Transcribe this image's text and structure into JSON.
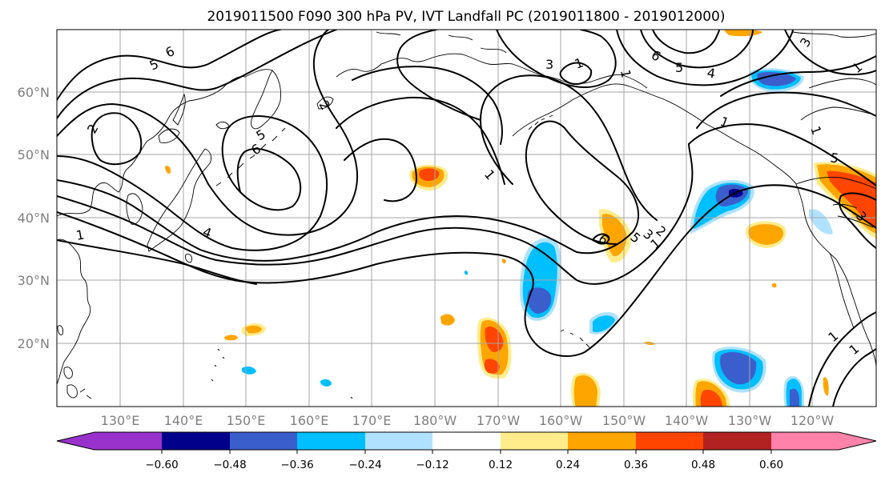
{
  "title": "2019011500 F090 300 hPa PV, IVT Landfall PC (2019011800 - 2019012000)",
  "lat_labels": [
    "60°N",
    "50°N",
    "40°N",
    "30°N",
    "20°N"
  ],
  "lon_labels": [
    "130°E",
    "140°E",
    "150°E",
    "160°E",
    "170°E",
    "180°W",
    "170°W",
    "160°W",
    "150°W",
    "140°W",
    "130°W",
    "120°W"
  ],
  "colorbar": {
    "tick_labels": [
      "−0.60",
      "−0.48",
      "−0.36",
      "−0.24",
      "−0.12",
      "0.12",
      "0.24",
      "0.36",
      "0.48",
      "0.60"
    ],
    "colors": [
      "#9932CC",
      "#00008B",
      "#3A5FCD",
      "#00BFFF",
      "#B0E2FF",
      "#FFFFFF",
      "#FFEC8B",
      "#FFA500",
      "#FF4500",
      "#B22222",
      "#FF82AB"
    ]
  },
  "contour_labels": [
    "6",
    "5",
    "2",
    "1",
    "5",
    "6",
    "4",
    "1",
    "3",
    "1",
    "1",
    "5",
    "6",
    "4",
    "3",
    "5",
    "1",
    "1",
    "6",
    "5",
    "3",
    "2",
    "1",
    "2",
    "3",
    "1",
    "1",
    "1"
  ]
}
